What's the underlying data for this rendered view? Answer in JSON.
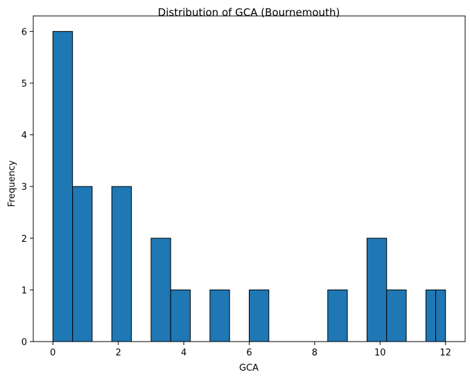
{
  "chart_data": {
    "type": "bar",
    "title": "Distribution of GCA (Bournemouth)",
    "xlabel": "GCA",
    "ylabel": "Frequency",
    "bins": {
      "start": 0,
      "end": 12,
      "count": 20
    },
    "values": [
      6,
      3,
      0,
      3,
      0,
      2,
      1,
      0,
      1,
      0,
      1,
      0,
      0,
      0,
      1,
      0,
      2,
      1,
      0,
      2
    ],
    "last_bin_split": [
      1,
      1
    ],
    "xlim": [
      -0.6,
      12.6
    ],
    "ylim": [
      0,
      6.3
    ],
    "xticks": [
      0,
      2,
      4,
      6,
      8,
      10,
      12
    ],
    "yticks": [
      0,
      1,
      2,
      3,
      4,
      5,
      6
    ],
    "bar_color": "#1f77b4",
    "edge_color": "#000000",
    "grid": false
  }
}
